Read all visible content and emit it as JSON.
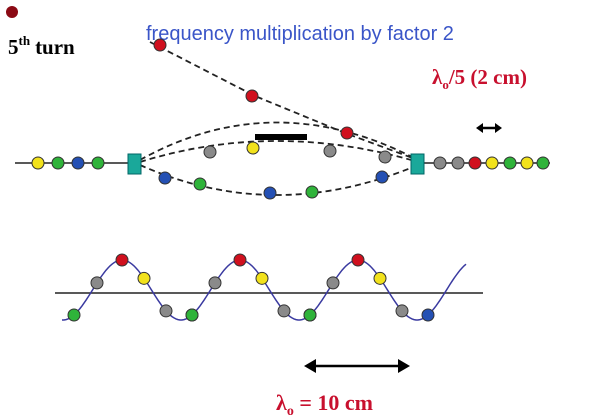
{
  "title": {
    "ordinal": "5",
    "superscript": "th",
    "word": "turn"
  },
  "caption": "frequency multiplication by factor 2",
  "top_label": {
    "symbol": "λ",
    "subscript": "o",
    "rest": "/5 (2 cm)"
  },
  "bottom_label": {
    "symbol": "λ",
    "subscript": "o",
    "rest": " = 10 cm"
  }
}
